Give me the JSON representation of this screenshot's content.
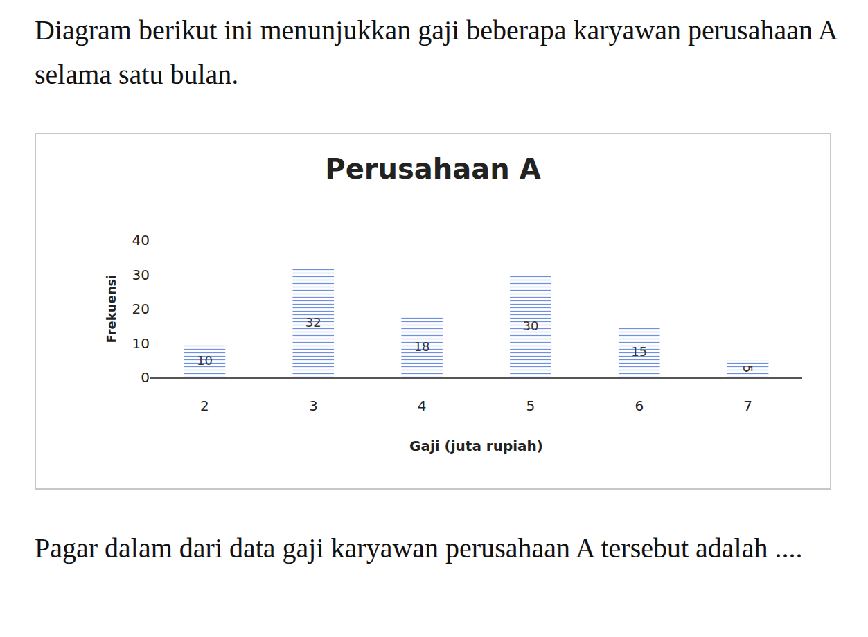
{
  "intro": "Diagram berikut ini menunjukkan gaji beberapa karyawan perusahaan A selama satu bulan.",
  "question": "Pagar dalam dari data gaji karyawan perusahaan A tersebut adalah ....",
  "chart_data": {
    "type": "bar",
    "title": "Perusahaan A",
    "x_label": "Gaji (juta rupiah)",
    "y_label": "Frekuensi",
    "categories": [
      "2",
      "3",
      "4",
      "5",
      "6",
      "7"
    ],
    "values": [
      10,
      32,
      18,
      30,
      15,
      5
    ],
    "color": "#1f3c9c",
    "ylim": [
      0,
      40
    ],
    "yticks": [
      0,
      10,
      20,
      30,
      40
    ],
    "grid": false,
    "data_labels": true
  }
}
